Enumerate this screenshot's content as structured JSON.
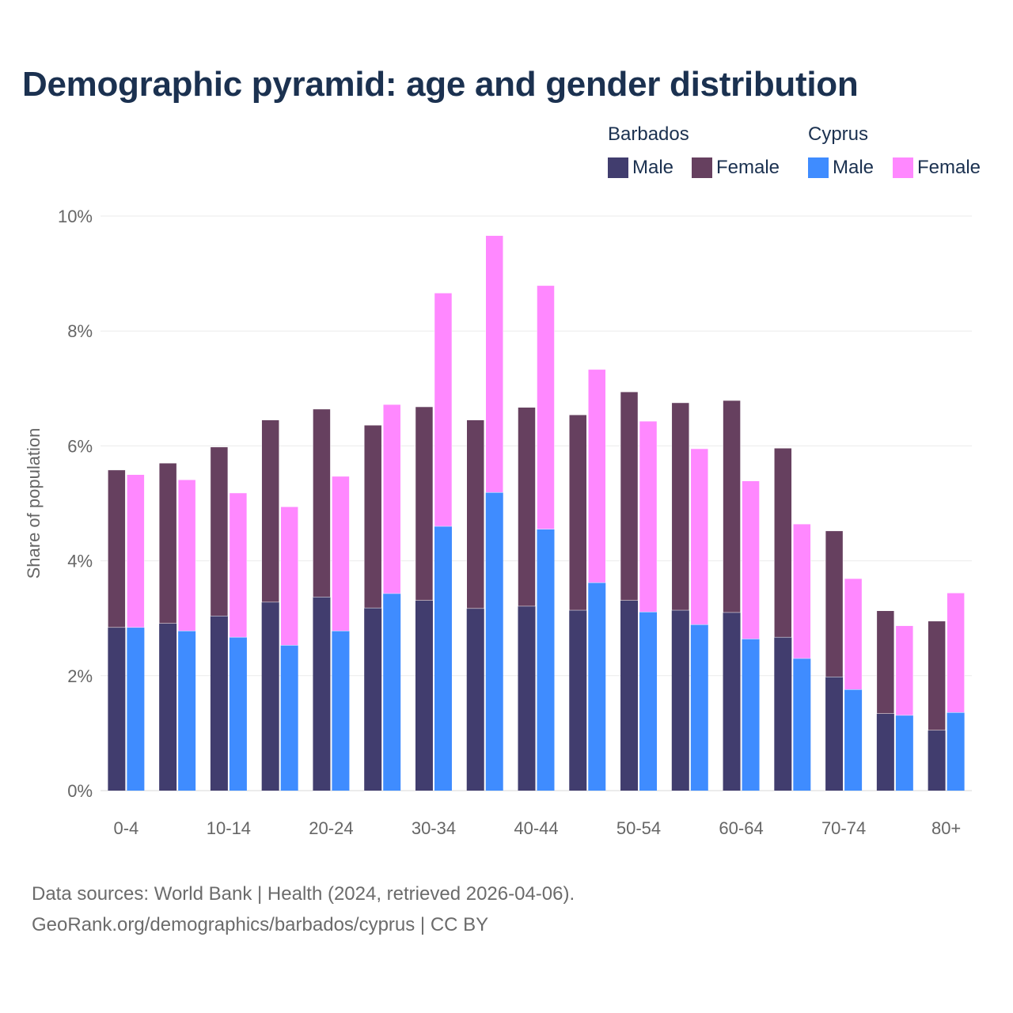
{
  "title": "Demographic pyramid: age and gender distribution",
  "legend": {
    "groups": [
      "Barbados",
      "Cyprus"
    ],
    "items": [
      {
        "label": "Male",
        "series": "Barbados Male"
      },
      {
        "label": "Female",
        "series": "Barbados Female"
      },
      {
        "label": "Male",
        "series": "Cyprus Male"
      },
      {
        "label": "Female",
        "series": "Cyprus Female"
      }
    ]
  },
  "footer": {
    "line1": "Data sources: World Bank | Health (2024, retrieved 2026-04-06).",
    "line2": "GeoRank.org/demographics/barbados/cyprus | CC BY"
  },
  "colors": {
    "barbados_male": "#413d6e",
    "barbados_female": "#66405f",
    "cyprus_male": "#3f8cff",
    "cyprus_female": "#ff88ff"
  },
  "chart_data": {
    "type": "bar",
    "stacked": true,
    "title": "Demographic pyramid: age and gender distribution",
    "xlabel": "",
    "ylabel": "Share of population",
    "ylim": [
      0,
      10
    ],
    "yticks": [
      "0%",
      "2%",
      "4%",
      "6%",
      "8%",
      "10%"
    ],
    "ytick_values": [
      0,
      2,
      4,
      6,
      8,
      10
    ],
    "grid": true,
    "legend_position": "top-right",
    "categories": [
      "0-4",
      "5-9",
      "10-14",
      "15-19",
      "20-24",
      "25-29",
      "30-34",
      "35-39",
      "40-44",
      "45-49",
      "50-54",
      "55-59",
      "60-64",
      "65-69",
      "70-74",
      "75-79",
      "80+"
    ],
    "xtick_labels_shown": [
      "0-4",
      "10-14",
      "20-24",
      "30-34",
      "40-44",
      "50-54",
      "60-64",
      "70-74",
      "80+"
    ],
    "series": [
      {
        "name": "Barbados Male",
        "stack": "Barbados",
        "values": [
          2.84,
          2.91,
          3.04,
          3.28,
          3.37,
          3.18,
          3.31,
          3.17,
          3.21,
          3.14,
          3.31,
          3.14,
          3.1,
          2.67,
          1.98,
          1.34,
          1.05
        ]
      },
      {
        "name": "Barbados Female",
        "stack": "Barbados",
        "values": [
          2.74,
          2.79,
          2.94,
          3.17,
          3.27,
          3.18,
          3.37,
          3.28,
          3.46,
          3.4,
          3.63,
          3.61,
          3.69,
          3.29,
          2.54,
          1.79,
          1.9
        ]
      },
      {
        "name": "Cyprus Male",
        "stack": "Cyprus",
        "values": [
          2.84,
          2.78,
          2.67,
          2.53,
          2.78,
          3.43,
          4.6,
          5.19,
          4.55,
          3.62,
          3.11,
          2.89,
          2.64,
          2.3,
          1.76,
          1.31,
          1.36
        ]
      },
      {
        "name": "Cyprus Female",
        "stack": "Cyprus",
        "values": [
          2.66,
          2.63,
          2.51,
          2.41,
          2.69,
          3.29,
          4.06,
          4.47,
          4.24,
          3.71,
          3.32,
          3.06,
          2.75,
          2.34,
          1.93,
          1.56,
          2.08
        ]
      }
    ]
  }
}
